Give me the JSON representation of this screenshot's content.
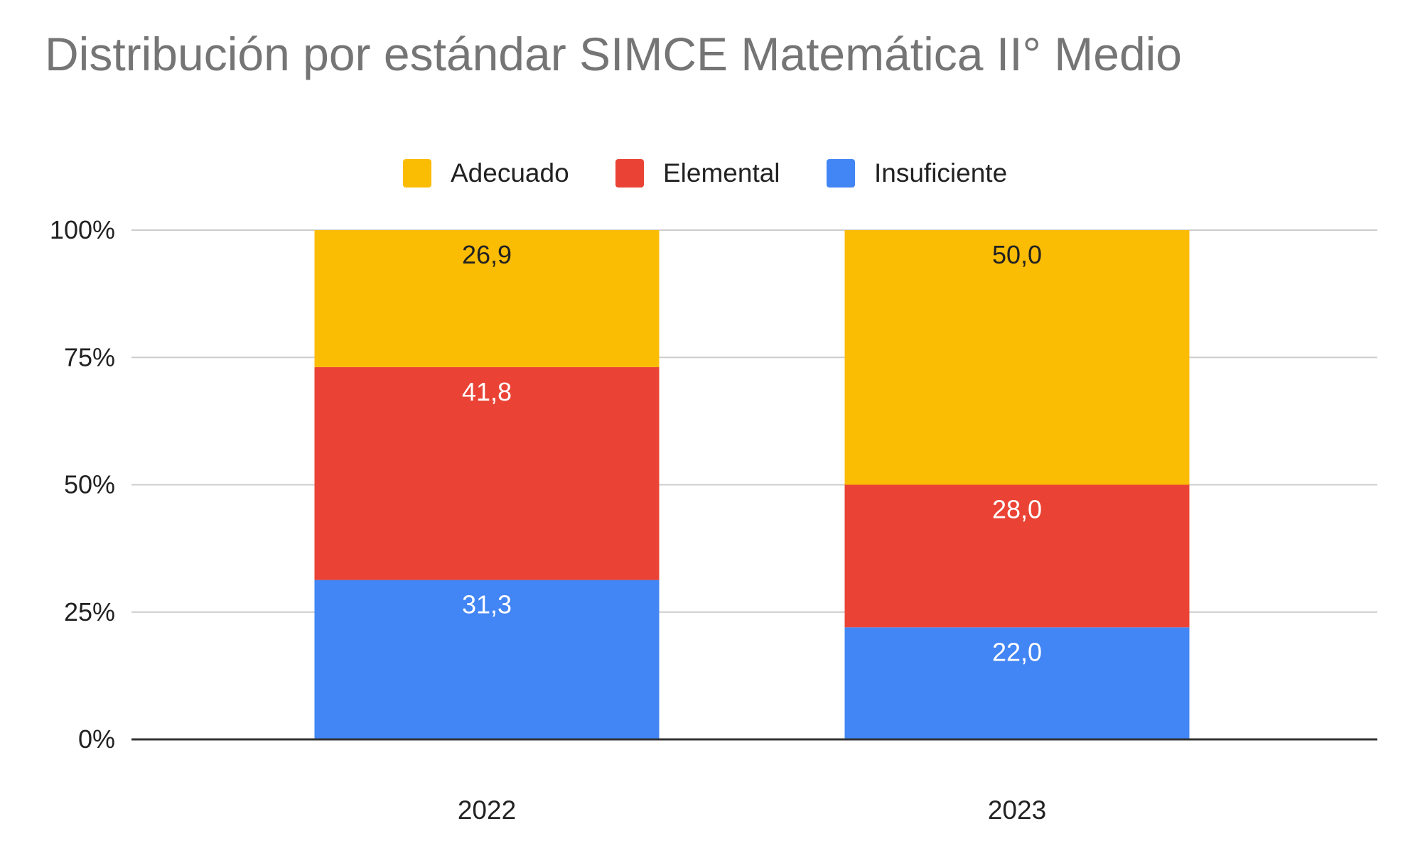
{
  "chart_data": {
    "type": "bar",
    "stacked": true,
    "percent_stacked": true,
    "title": "Distribución por estándar SIMCE Matemática II° Medio",
    "xlabel": "",
    "ylabel": "",
    "categories": [
      "2022",
      "2023"
    ],
    "series": [
      {
        "name": "Insuficiente",
        "color": "#4285F4",
        "values": [
          31.3,
          22.0
        ],
        "labels": [
          "31,3",
          "22,0"
        ],
        "label_color": "#ffffff"
      },
      {
        "name": "Elemental",
        "color": "#EA4335",
        "values": [
          41.8,
          28.0
        ],
        "labels": [
          "41,8",
          "28,0"
        ],
        "label_color": "#ffffff"
      },
      {
        "name": "Adecuado",
        "color": "#FBBC04",
        "values": [
          26.9,
          50.0
        ],
        "labels": [
          "26,9",
          "50,0"
        ],
        "label_color": "#222222"
      }
    ],
    "legend_order": [
      "Adecuado",
      "Elemental",
      "Insuficiente"
    ],
    "legend_position": "top-center",
    "ylim": [
      0,
      100
    ],
    "yticks": [
      0,
      25,
      50,
      75,
      100
    ],
    "ytick_labels": [
      "0%",
      "25%",
      "50%",
      "75%",
      "100%"
    ],
    "grid": true,
    "colors": {
      "title": "#757575",
      "gridline": "#cccccc",
      "axis": "#333333",
      "text": "#222222"
    }
  }
}
